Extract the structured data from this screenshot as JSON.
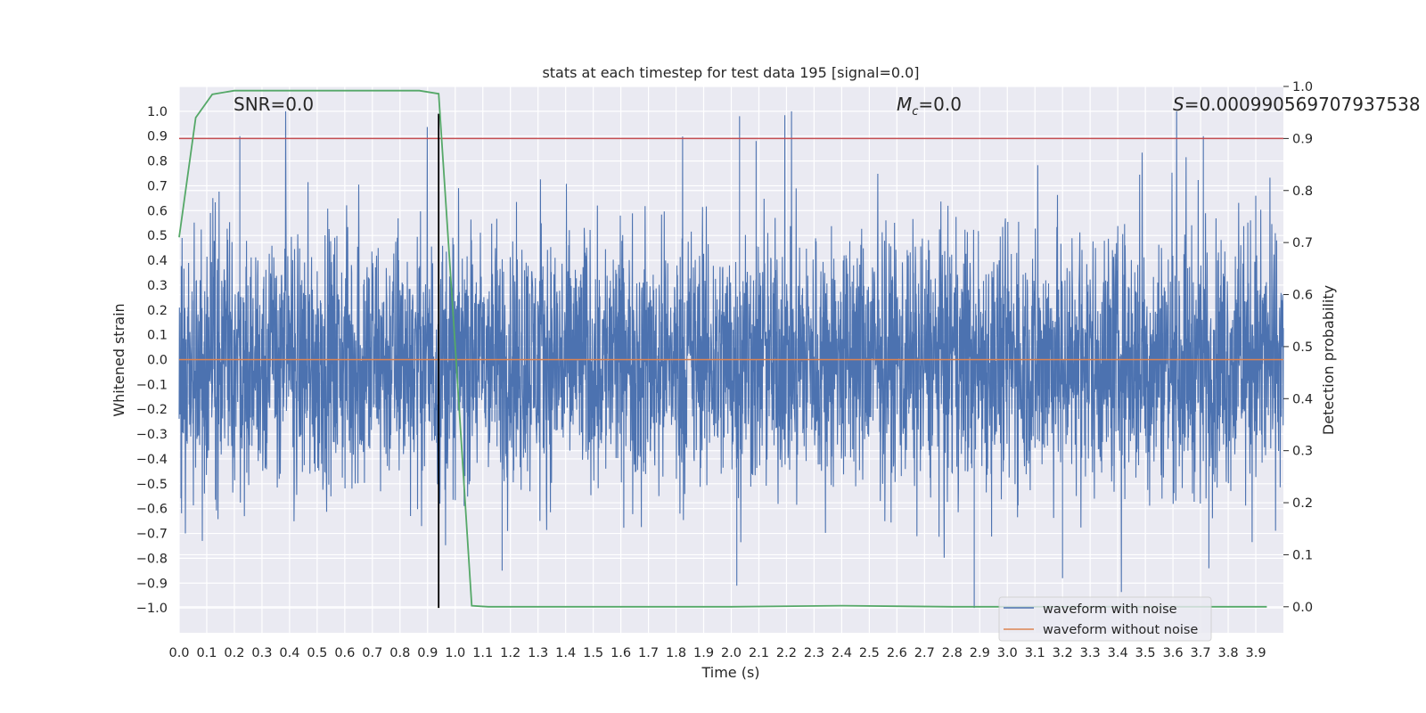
{
  "chart_data": {
    "type": "line",
    "title": "stats at each timestep for test data 195 [signal=0.0]",
    "xlabel": "Time (s)",
    "ylabel": "Whitened strain",
    "ylabel_right": "Detection probability",
    "xlim": [
      0.0,
      4.0
    ],
    "ylim": [
      -1.1,
      1.1
    ],
    "ylim_right": [
      -0.05,
      1.0
    ],
    "x_ticks": [
      "0.0",
      "0.1",
      "0.2",
      "0.3",
      "0.4",
      "0.5",
      "0.6",
      "0.7",
      "0.8",
      "0.9",
      "1.0",
      "1.1",
      "1.2",
      "1.3",
      "1.4",
      "1.5",
      "1.6",
      "1.7",
      "1.8",
      "1.9",
      "2.0",
      "2.1",
      "2.2",
      "2.3",
      "2.4",
      "2.5",
      "2.6",
      "2.7",
      "2.8",
      "2.9",
      "3.0",
      "3.1",
      "3.2",
      "3.3",
      "3.4",
      "3.5",
      "3.6",
      "3.7",
      "3.8",
      "3.9"
    ],
    "y_ticks": [
      "1.0",
      "0.9",
      "0.8",
      "0.7",
      "0.6",
      "0.5",
      "0.4",
      "0.3",
      "0.2",
      "0.1",
      "0.0",
      "−0.1",
      "−0.2",
      "−0.3",
      "−0.4",
      "−0.5",
      "−0.6",
      "−0.7",
      "−0.8",
      "−0.9",
      "−1.0"
    ],
    "y_right_ticks": [
      "1.0",
      "0.9",
      "0.8",
      "0.7",
      "0.6",
      "0.5",
      "0.4",
      "0.3",
      "0.2",
      "0.1",
      "0.0"
    ],
    "annotations": {
      "snr": "SNR=0.0",
      "mc_symbol": "M",
      "mc_sub": "c",
      "mc_value": "=0.0",
      "s_symbol": "S",
      "s_value": "=0.000990569707937538"
    },
    "legend": [
      "waveform with noise",
      "waveform without noise"
    ],
    "series": [
      {
        "name": "waveform with noise",
        "color": "#4c72b0",
        "kind": "noise",
        "approx_envelope": [
          -1.0,
          1.0
        ],
        "spikes": [
          [
            0.22,
            0.9
          ],
          [
            2.03,
            0.98
          ],
          [
            2.09,
            0.88
          ],
          [
            3.71,
            0.9
          ],
          [
            2.88,
            -1.0
          ],
          [
            2.02,
            -0.91
          ],
          [
            1.17,
            -0.85
          ],
          [
            3.2,
            -0.88
          ],
          [
            3.73,
            -0.84
          ],
          [
            3.9,
            0.66
          ]
        ]
      },
      {
        "name": "waveform without noise",
        "color": "#dd8452",
        "x": [
          0.0,
          4.0
        ],
        "y": [
          0.0,
          0.0
        ]
      },
      {
        "name": "detection probability",
        "color": "#55a868",
        "axis": "right",
        "x": [
          0.0,
          0.06,
          0.12,
          0.2,
          0.3,
          0.5,
          0.7,
          0.87,
          0.94,
          1.0,
          1.06,
          1.12,
          1.5,
          2.0,
          2.4,
          2.8,
          3.3,
          3.94
        ],
        "y": [
          0.71,
          0.94,
          0.985,
          0.992,
          0.992,
          0.992,
          0.992,
          0.992,
          0.986,
          0.5,
          0.002,
          0.0,
          0.0,
          0.0,
          0.002,
          0.0,
          0.0,
          0.0
        ]
      },
      {
        "name": "threshold",
        "color": "#c44e52",
        "axis": "right",
        "value": 0.9
      },
      {
        "name": "marker",
        "color": "#000000",
        "x": 0.94,
        "y": [
          -1.0,
          0.99
        ]
      }
    ]
  }
}
